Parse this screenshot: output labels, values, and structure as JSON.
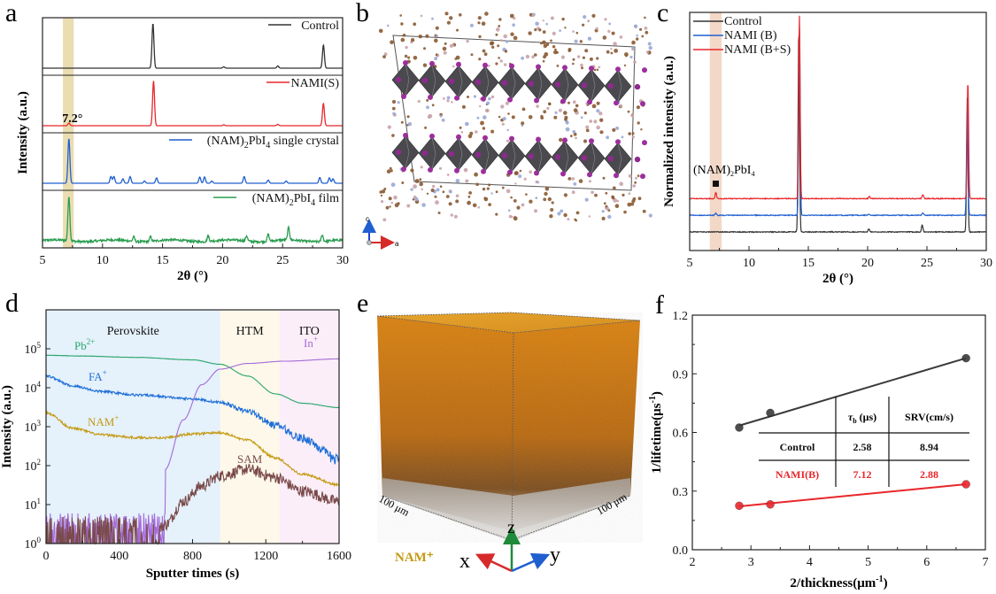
{
  "figure": {
    "panels": [
      "a",
      "b",
      "c",
      "d",
      "e",
      "f"
    ]
  },
  "chart_data": [
    {
      "id": "a",
      "type": "line",
      "title": "",
      "xlabel": "2θ (°)",
      "ylabel": "Intensity (a.u.)",
      "xlim": [
        5,
        30
      ],
      "xticks": [
        "5",
        "10",
        "15",
        "20",
        "25",
        "30"
      ],
      "highlight_band": {
        "from": 6.7,
        "to": 7.6,
        "color": "#e8d9a8"
      },
      "annotation": "7.2°",
      "series": [
        {
          "name": "Control",
          "color": "#333333",
          "peaks": [
            [
              14.2,
              1.0
            ],
            [
              20.1,
              0.03
            ],
            [
              24.6,
              0.05
            ],
            [
              28.4,
              0.52
            ]
          ],
          "noise": 0.0
        },
        {
          "name": "NAMI(S)",
          "color": "#e8262b",
          "peaks": [
            [
              7.2,
              0.06
            ],
            [
              14.25,
              1.0
            ],
            [
              20.1,
              0.02
            ],
            [
              24.6,
              0.03
            ],
            [
              28.4,
              0.5
            ]
          ],
          "noise": 0.0
        },
        {
          "name": "(NAM)2PbI4 single crystal",
          "color": "#1f5fd0",
          "peaks": [
            [
              7.2,
              1.0
            ],
            [
              10.7,
              0.15
            ],
            [
              10.95,
              0.15
            ],
            [
              11.7,
              0.1
            ],
            [
              12.3,
              0.15
            ],
            [
              13.5,
              0.05
            ],
            [
              14.5,
              0.12
            ],
            [
              18.1,
              0.14
            ],
            [
              18.5,
              0.14
            ],
            [
              19.1,
              0.05
            ],
            [
              21.8,
              0.15
            ],
            [
              23.8,
              0.07
            ],
            [
              25.3,
              0.05
            ],
            [
              28.1,
              0.13
            ],
            [
              28.9,
              0.12
            ],
            [
              29.2,
              0.1
            ]
          ],
          "noise": 0.0
        },
        {
          "name": "(NAM)2PbI4 film",
          "color": "#2a9d4f",
          "peaks": [
            [
              7.2,
              1.0
            ],
            [
              12.6,
              0.1
            ],
            [
              14.0,
              0.1
            ],
            [
              18.8,
              0.12
            ],
            [
              22.0,
              0.12
            ],
            [
              23.8,
              0.15
            ],
            [
              25.5,
              0.28
            ],
            [
              28.3,
              0.15
            ]
          ],
          "noise": 0.05
        }
      ]
    },
    {
      "id": "c",
      "type": "line",
      "xlabel": "2θ (°)",
      "ylabel": "Normalized intensity (a.u.)",
      "xlim": [
        5,
        30
      ],
      "xticks": [
        "5",
        "10",
        "15",
        "20",
        "25",
        "30"
      ],
      "highlight_band": {
        "from": 6.7,
        "to": 7.7,
        "color": "#f2d6c4"
      },
      "annotation": "(NAM)2PbI4",
      "legend_position": "top-left",
      "series": [
        {
          "name": "Control",
          "color": "#333333",
          "offset": 0.0,
          "peaks": [
            [
              14.2,
              1.0
            ],
            [
              20.1,
              0.015
            ],
            [
              24.6,
              0.035
            ],
            [
              28.4,
              0.55
            ]
          ]
        },
        {
          "name": "NAMI (B)",
          "color": "#1f5fd0",
          "offset": 0.07,
          "peaks": [
            [
              7.2,
              0.01
            ],
            [
              14.25,
              0.92
            ],
            [
              20.1,
              0.006
            ],
            [
              24.65,
              0.012
            ],
            [
              28.4,
              0.58
            ]
          ]
        },
        {
          "name": "NAMI (B+S)",
          "color": "#e8262b",
          "offset": 0.14,
          "peaks": [
            [
              7.2,
              0.03
            ],
            [
              14.25,
              0.9
            ],
            [
              20.15,
              0.01
            ],
            [
              24.65,
              0.02
            ],
            [
              28.45,
              0.58
            ]
          ]
        }
      ]
    },
    {
      "id": "d",
      "type": "line",
      "yscale": "log",
      "xlabel": "Sputter times (s)",
      "ylabel": "Intensity (a.u.)",
      "xlim": [
        0,
        1600
      ],
      "ylim": [
        1,
        1000000
      ],
      "xticks": [
        "0",
        "400",
        "800",
        "1200",
        "1600"
      ],
      "yticks": [
        "10^0",
        "10^1",
        "10^2",
        "10^3",
        "10^4",
        "10^5"
      ],
      "regions": [
        {
          "label": "Perovskite",
          "from": 0,
          "to": 950,
          "color": "#e5f1fb"
        },
        {
          "label": "HTM",
          "from": 950,
          "to": 1275,
          "color": "#fdf8ea"
        },
        {
          "label": "ITO",
          "from": 1275,
          "to": 1600,
          "color": "#fbeef8"
        }
      ],
      "series": [
        {
          "name": "Pb2+",
          "color": "#2aa66b",
          "points": [
            [
              0,
              68000
            ],
            [
              200,
              65000
            ],
            [
              500,
              60000
            ],
            [
              800,
              52000
            ],
            [
              950,
              40000
            ],
            [
              1100,
              20000
            ],
            [
              1250,
              7000
            ],
            [
              1400,
              4000
            ],
            [
              1600,
              3100
            ]
          ]
        },
        {
          "name": "FA+",
          "color": "#1f6fd8",
          "points": [
            [
              0,
              20000
            ],
            [
              150,
              11000
            ],
            [
              300,
              8000
            ],
            [
              500,
              6500
            ],
            [
              800,
              5200
            ],
            [
              950,
              4200
            ],
            [
              1100,
              2500
            ],
            [
              1250,
              1100
            ],
            [
              1400,
              500
            ],
            [
              1600,
              140
            ]
          ]
        },
        {
          "name": "NAM+",
          "color": "#c49a12",
          "points": [
            [
              0,
              2300
            ],
            [
              150,
              900
            ],
            [
              300,
              620
            ],
            [
              500,
              520
            ],
            [
              650,
              520
            ],
            [
              800,
              650
            ],
            [
              950,
              700
            ],
            [
              1100,
              450
            ],
            [
              1250,
              160
            ],
            [
              1400,
              60
            ],
            [
              1600,
              32
            ]
          ]
        },
        {
          "name": "In+",
          "color": "#a46ad8",
          "points": [
            [
              0,
              2
            ],
            [
              450,
              2
            ],
            [
              550,
              8
            ],
            [
              650,
              80
            ],
            [
              750,
              1500
            ],
            [
              850,
              12000
            ],
            [
              950,
              30000
            ],
            [
              1100,
              42000
            ],
            [
              1300,
              48000
            ],
            [
              1600,
              55000
            ]
          ]
        },
        {
          "name": "SAM",
          "color": "#7a4a4a",
          "points": [
            [
              0,
              2
            ],
            [
              550,
              1
            ],
            [
              650,
              3
            ],
            [
              750,
              12
            ],
            [
              850,
              30
            ],
            [
              950,
              55
            ],
            [
              1100,
              80
            ],
            [
              1250,
              50
            ],
            [
              1400,
              22
            ],
            [
              1600,
              12
            ]
          ]
        }
      ]
    },
    {
      "id": "f",
      "type": "scatter",
      "xlabel": "2/thickness(μm⁻¹)",
      "ylabel": "1/lifetime(μs⁻¹)",
      "xlim": [
        2,
        7
      ],
      "ylim": [
        0.0,
        1.2
      ],
      "xticks": [
        "2",
        "3",
        "4",
        "5",
        "6",
        "7"
      ],
      "yticks": [
        "0.0",
        "0.3",
        "0.6",
        "0.9",
        "1.2"
      ],
      "series": [
        {
          "name": "Control",
          "color": "#3a3a3a",
          "points": [
            [
              2.8,
              0.625
            ],
            [
              3.33,
              0.7
            ],
            [
              6.67,
              0.98
            ]
          ],
          "fit": [
            [
              2.8,
              0.635
            ],
            [
              6.67,
              0.98
            ]
          ]
        },
        {
          "name": "NAMI(B)",
          "color": "#e8262b",
          "points": [
            [
              2.8,
              0.225
            ],
            [
              3.33,
              0.232
            ],
            [
              6.67,
              0.335
            ]
          ],
          "fit": [
            [
              2.8,
              0.222
            ],
            [
              6.67,
              0.335
            ]
          ]
        }
      ],
      "table": {
        "headers": [
          "",
          "τb (μs)",
          "SRV(cm/s)"
        ],
        "rows": [
          {
            "label": "Control",
            "tau": "2.58",
            "srv": "8.94",
            "color": "#111111"
          },
          {
            "label": "NAMI(B)",
            "tau": "7.12",
            "srv": "2.88",
            "color": "#e8262b"
          }
        ]
      }
    }
  ],
  "panel_b": {
    "axis_labels": {
      "c": "c",
      "a": "a"
    }
  },
  "panel_e": {
    "species_label": "NAM⁺",
    "dim_x": "100 μm",
    "dim_y": "100 μm",
    "axes": {
      "x": "x",
      "y": "y",
      "z": "z"
    }
  },
  "labels": {
    "a_annotation": "7.2°",
    "d_ion_labels": {
      "pb": "Pb",
      "pb_sup": "2+",
      "fa": "FA",
      "fa_sup": "+",
      "nam": "NAM",
      "nam_sup": "+",
      "in": "In",
      "in_sup": "+",
      "sam": "SAM"
    }
  }
}
